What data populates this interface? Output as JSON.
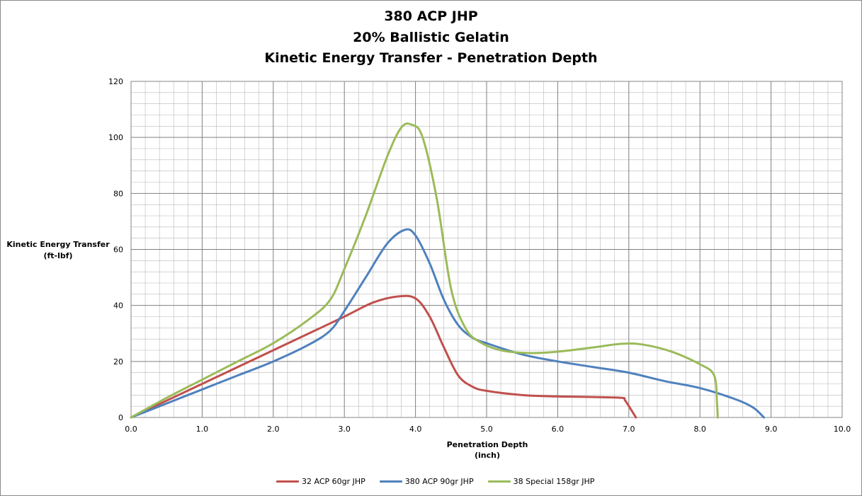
{
  "chart_data": {
    "type": "line",
    "title": [
      "380 ACP JHP",
      "20% Ballistic Gelatin",
      "Kinetic Energy Transfer - Penetration Depth"
    ],
    "xlabel": [
      "Penetration Depth",
      "(inch)"
    ],
    "ylabel": [
      "Kinetic Energy Transfer",
      "(ft-lbf)"
    ],
    "xlim": [
      0,
      10
    ],
    "ylim": [
      0,
      120
    ],
    "x_ticks": [
      "0.0",
      "1.0",
      "2.0",
      "3.0",
      "4.0",
      "5.0",
      "6.0",
      "7.0",
      "8.0",
      "9.0",
      "10.0"
    ],
    "y_ticks": [
      "0",
      "20",
      "40",
      "60",
      "80",
      "100",
      "120"
    ],
    "grid": true,
    "legend_position": "bottom",
    "series": [
      {
        "name": "32 ACP 60gr JHP",
        "color": "#c0504d",
        "points": [
          [
            0,
            0
          ],
          [
            0.5,
            6
          ],
          [
            1.0,
            12
          ],
          [
            1.5,
            18
          ],
          [
            2.0,
            24
          ],
          [
            2.5,
            30
          ],
          [
            3.0,
            36
          ],
          [
            3.4,
            41
          ],
          [
            3.75,
            43.2
          ],
          [
            4.0,
            42.5
          ],
          [
            4.2,
            36
          ],
          [
            4.4,
            25
          ],
          [
            4.6,
            15
          ],
          [
            4.8,
            11
          ],
          [
            5.0,
            9.5
          ],
          [
            5.5,
            8
          ],
          [
            6.0,
            7.5
          ],
          [
            6.5,
            7.3
          ],
          [
            6.9,
            7
          ],
          [
            6.95,
            6
          ],
          [
            7.1,
            0
          ]
        ]
      },
      {
        "name": "380 ACP 90gr JHP",
        "color": "#4f81bd",
        "points": [
          [
            0,
            0
          ],
          [
            0.5,
            5
          ],
          [
            1.0,
            10
          ],
          [
            1.5,
            15
          ],
          [
            2.0,
            20
          ],
          [
            2.5,
            26
          ],
          [
            2.8,
            31
          ],
          [
            3.0,
            38
          ],
          [
            3.3,
            50
          ],
          [
            3.6,
            62
          ],
          [
            3.85,
            67
          ],
          [
            4.0,
            65
          ],
          [
            4.2,
            55
          ],
          [
            4.4,
            42
          ],
          [
            4.6,
            33
          ],
          [
            4.8,
            28.5
          ],
          [
            5.0,
            26.5
          ],
          [
            5.5,
            22.5
          ],
          [
            6.0,
            20
          ],
          [
            6.5,
            18
          ],
          [
            7.0,
            16
          ],
          [
            7.5,
            13
          ],
          [
            8.0,
            10.5
          ],
          [
            8.5,
            6.5
          ],
          [
            8.75,
            3.5
          ],
          [
            8.9,
            0
          ]
        ]
      },
      {
        "name": "38 Special 158gr JHP",
        "color": "#9bbb59",
        "points": [
          [
            0,
            0
          ],
          [
            0.5,
            7
          ],
          [
            1.0,
            13.5
          ],
          [
            1.5,
            20
          ],
          [
            2.0,
            26.5
          ],
          [
            2.5,
            35
          ],
          [
            2.8,
            42
          ],
          [
            3.0,
            53
          ],
          [
            3.3,
            72
          ],
          [
            3.6,
            93
          ],
          [
            3.8,
            103.5
          ],
          [
            3.95,
            104.5
          ],
          [
            4.1,
            100
          ],
          [
            4.3,
            78
          ],
          [
            4.5,
            46
          ],
          [
            4.7,
            32
          ],
          [
            4.9,
            27
          ],
          [
            5.2,
            24
          ],
          [
            5.6,
            23
          ],
          [
            6.0,
            23.5
          ],
          [
            6.5,
            25
          ],
          [
            6.9,
            26.3
          ],
          [
            7.2,
            26
          ],
          [
            7.6,
            23.5
          ],
          [
            8.0,
            19
          ],
          [
            8.2,
            15
          ],
          [
            8.24,
            5
          ],
          [
            8.25,
            0
          ]
        ]
      }
    ]
  }
}
